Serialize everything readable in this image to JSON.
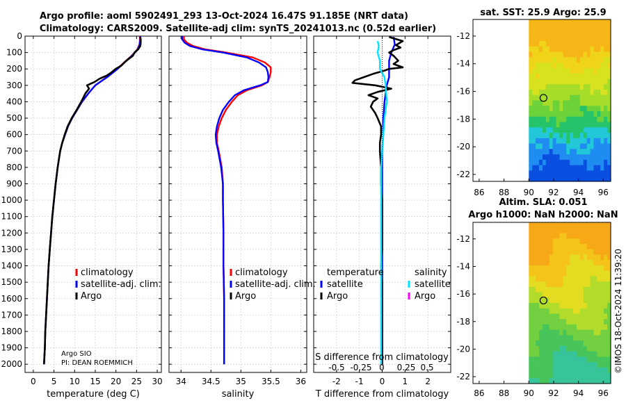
{
  "header": {
    "title_line1": "Argo profile: aoml 5902491_293 13-Oct-2024 16.47S 91.185E (NRT data)",
    "title_line2": "Climatology: CARS2009. Satellite-adj clim: synTS_20241013.nc (0.52d earlier)"
  },
  "credit": {
    "line1": "Argo SIO",
    "line2": "PI: DEAN ROEMMICH"
  },
  "watermark": "©IMOS 18-Oct-2024 11:39:20",
  "colors": {
    "climatology": "#ff0000",
    "satellite_adj": "#0000ff",
    "argo": "#000000",
    "satellite": "#00e5ff",
    "argo_salinity": "#ff00ff"
  },
  "chart_data": [
    {
      "type": "line",
      "xlabel": "temperature (deg C)",
      "ylabel": "",
      "xlim": [
        -2,
        31
      ],
      "ylim": [
        2050,
        0
      ],
      "xticks": [
        0,
        5,
        10,
        15,
        20,
        25,
        30
      ],
      "yticks": [
        0,
        100,
        200,
        300,
        400,
        500,
        600,
        700,
        800,
        900,
        1000,
        1100,
        1200,
        1300,
        1400,
        1500,
        1600,
        1700,
        1800,
        1900,
        2000
      ],
      "legend": [
        "climatology",
        "satellite-adj. clim.",
        "Argo"
      ],
      "series": [
        {
          "name": "climatology",
          "color": "#ff0000",
          "y": [
            0,
            25,
            50,
            80,
            120,
            160,
            200,
            250,
            300,
            350,
            400,
            450,
            500,
            550,
            600,
            650,
            700,
            800,
            900,
            1000,
            1100,
            1200,
            1300,
            1400,
            1500,
            1600,
            1700,
            1800,
            1900,
            2000
          ],
          "x": [
            25.8,
            25.8,
            25.7,
            25.2,
            23.8,
            22.0,
            20.3,
            17.8,
            15.0,
            13.3,
            11.8,
            10.6,
            9.4,
            8.4,
            7.7,
            7.0,
            6.5,
            5.9,
            5.4,
            5.0,
            4.6,
            4.3,
            4.0,
            3.7,
            3.5,
            3.3,
            3.1,
            2.9,
            2.8,
            2.6
          ]
        },
        {
          "name": "satellite-adj. clim.",
          "color": "#0000ff",
          "y": [
            0,
            25,
            50,
            80,
            120,
            160,
            200,
            250,
            300,
            350,
            400,
            450,
            500,
            550,
            600,
            650,
            700,
            800,
            900,
            1000,
            1100,
            1200,
            1300,
            1400,
            1500,
            1600,
            1700,
            1800,
            1900,
            2000
          ],
          "x": [
            25.9,
            25.9,
            25.8,
            25.3,
            23.9,
            22.1,
            20.4,
            17.9,
            15.0,
            13.3,
            11.8,
            10.6,
            9.4,
            8.4,
            7.7,
            7.0,
            6.5,
            5.9,
            5.4,
            5.0,
            4.6,
            4.3,
            4.0,
            3.7,
            3.5,
            3.3,
            3.1,
            2.9,
            2.8,
            2.6
          ]
        },
        {
          "name": "Argo",
          "color": "#000000",
          "y": [
            5,
            20,
            40,
            60,
            80,
            100,
            120,
            150,
            180,
            200,
            220,
            240,
            260,
            280,
            300,
            320,
            350,
            380,
            400,
            450,
            500,
            550,
            600,
            650,
            700,
            800,
            900,
            1000,
            1100,
            1200,
            1300,
            1400,
            1500,
            1600,
            1700,
            1800,
            1900,
            2000
          ],
          "x": [
            25.9,
            26.0,
            26.0,
            25.9,
            25.4,
            24.5,
            24.1,
            22.5,
            21.3,
            19.9,
            19.0,
            17.8,
            16.0,
            14.8,
            13.0,
            13.5,
            12.6,
            12.0,
            11.6,
            10.5,
            9.3,
            8.3,
            7.6,
            7.0,
            6.5,
            5.9,
            5.4,
            5.0,
            4.6,
            4.3,
            4.0,
            3.7,
            3.5,
            3.3,
            3.1,
            2.9,
            2.8,
            2.6
          ]
        }
      ]
    },
    {
      "type": "line",
      "xlabel": "salinity",
      "xlim": [
        33.8,
        36.1
      ],
      "ylim": [
        2050,
        0
      ],
      "xticks": [
        34,
        34.5,
        35,
        35.5,
        36
      ],
      "legend": [
        "climatology",
        "satellite-adj. clim.",
        "Argo"
      ],
      "series": [
        {
          "name": "climatology",
          "color": "#ff0000",
          "y": [
            0,
            20,
            40,
            60,
            80,
            100,
            130,
            160,
            190,
            220,
            250,
            280,
            300,
            330,
            360,
            400,
            450,
            500,
            550,
            600,
            650,
            700,
            800,
            900,
            1000,
            1200,
            1400,
            1600,
            1800,
            2000
          ],
          "x": [
            34.05,
            34.05,
            34.1,
            34.2,
            34.4,
            34.75,
            35.2,
            35.4,
            35.5,
            35.5,
            35.48,
            35.45,
            35.35,
            35.1,
            34.95,
            34.85,
            34.75,
            34.68,
            34.63,
            34.6,
            34.6,
            34.63,
            34.68,
            34.7,
            34.7,
            34.71,
            34.71,
            34.72,
            34.72,
            34.72
          ]
        },
        {
          "name": "satellite-adj. clim.",
          "color": "#0000ff",
          "y": [
            0,
            20,
            40,
            60,
            80,
            100,
            130,
            160,
            190,
            220,
            250,
            280,
            300,
            330,
            360,
            400,
            450,
            500,
            550,
            600,
            650,
            700,
            800,
            900,
            1000,
            1200,
            1400,
            1600,
            1800,
            2000
          ],
          "x": [
            34.02,
            34.02,
            34.06,
            34.15,
            34.35,
            34.7,
            35.1,
            35.3,
            35.42,
            35.45,
            35.46,
            35.45,
            35.32,
            35.05,
            34.9,
            34.8,
            34.7,
            34.64,
            34.6,
            34.58,
            34.59,
            34.62,
            34.67,
            34.7,
            34.7,
            34.71,
            34.71,
            34.72,
            34.72,
            34.72
          ]
        }
      ]
    },
    {
      "type": "line",
      "xlabel": "T difference from climatology",
      "xlabel2": "S difference from climatology",
      "xlim": [
        -3.0,
        3.0
      ],
      "ylim": [
        2050,
        0
      ],
      "xticks": [
        -2,
        -1,
        0,
        1,
        2
      ],
      "xticks2": [
        "-0.5",
        "-0.25",
        "0",
        "0.25",
        "0.5"
      ],
      "legend_groups": [
        {
          "title": "temperature",
          "items": [
            "satellite",
            "Argo"
          ]
        },
        {
          "title": "salinity",
          "items": [
            "satellite",
            "Argo"
          ]
        }
      ],
      "series": [
        {
          "name": "T satellite",
          "color": "#0000ff",
          "y": [
            5,
            50,
            100,
            150,
            200,
            250,
            300,
            400,
            500,
            600,
            700,
            800,
            900,
            1000,
            1200,
            1400,
            1600,
            1800,
            2000
          ],
          "x": [
            0.5,
            0.55,
            0.4,
            0.3,
            0.3,
            0.3,
            0.2,
            0.1,
            0.05,
            0.05,
            0.0,
            0.0,
            0.0,
            0.0,
            0.0,
            0.0,
            0.0,
            0.0,
            0.0
          ]
        },
        {
          "name": "T Argo",
          "color": "#000000",
          "y": [
            5,
            30,
            55,
            70,
            85,
            100,
            120,
            150,
            170,
            190,
            200,
            210,
            230,
            250,
            270,
            285,
            300,
            320,
            340,
            360,
            380,
            400,
            430,
            470,
            500,
            550,
            600,
            650,
            700,
            800,
            900,
            1000,
            1100,
            1200,
            1300,
            1400,
            1500,
            1600,
            1700,
            1800,
            1900,
            2000
          ],
          "x": [
            0.3,
            0.9,
            0.6,
            0.8,
            0.5,
            0.3,
            0.5,
            0.7,
            0.5,
            0.9,
            0.3,
            0.1,
            -0.4,
            -0.8,
            -1.2,
            -1.3,
            -0.3,
            0.4,
            -0.2,
            -0.6,
            -0.2,
            -0.4,
            -0.5,
            -0.3,
            -0.2,
            -0.05,
            -0.05,
            -0.1,
            -0.1,
            -0.05,
            -0.05,
            0.0,
            0.0,
            0.0,
            0.0,
            -0.05,
            0.0,
            0.0,
            0.0,
            0.0,
            0.0,
            0.0
          ]
        },
        {
          "name": "S satellite",
          "color": "#00e5ff",
          "y": [
            30,
            60,
            100,
            150,
            200,
            250,
            300,
            400,
            500,
            600,
            700,
            800,
            900,
            1000,
            1200,
            1400,
            1600,
            1800,
            2000
          ],
          "x": [
            -0.2,
            -0.15,
            -0.2,
            -0.1,
            -0.1,
            0.1,
            0.15,
            0.2,
            0.1,
            0.05,
            0.0,
            -0.05,
            -0.05,
            -0.05,
            -0.05,
            -0.05,
            -0.05,
            -0.05,
            -0.05
          ]
        }
      ]
    }
  ],
  "maps": [
    {
      "title": "sat. SST: 25.9 Argo: 25.9",
      "title2": "",
      "xticks": [
        "86",
        "88",
        "90",
        "92",
        "94",
        "96"
      ],
      "yticks": [
        "-12",
        "-14",
        "-16",
        "-18",
        "-20",
        "-22"
      ],
      "marker": {
        "lon": 91.185,
        "lat": -16.47
      },
      "lonlim": [
        85.5,
        96.6
      ],
      "latlim": [
        -22.5,
        -10.8
      ],
      "kind": "sst"
    },
    {
      "title": "Altim. SLA: 0.051",
      "title2": "Argo h1000: NaN h2000: NaN",
      "xticks": [
        "86",
        "88",
        "90",
        "92",
        "94",
        "96"
      ],
      "yticks": [
        "-12",
        "-14",
        "-16",
        "-18",
        "-20",
        "-22"
      ],
      "marker": {
        "lon": 91.185,
        "lat": -16.47
      },
      "lonlim": [
        85.5,
        96.6
      ],
      "latlim": [
        -22.5,
        -10.8
      ],
      "kind": "sla"
    }
  ]
}
